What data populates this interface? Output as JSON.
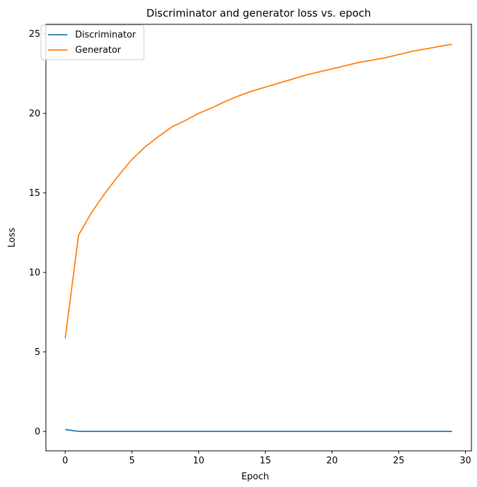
{
  "chart_data": {
    "type": "line",
    "title": "Discriminator and generator loss vs. epoch",
    "xlabel": "Epoch",
    "ylabel": "Loss",
    "xlim": [
      -1.45,
      30.45
    ],
    "ylim": [
      -1.22,
      25.6
    ],
    "xticks": [
      0,
      5,
      10,
      15,
      20,
      25,
      30
    ],
    "yticks": [
      0,
      5,
      10,
      15,
      20,
      25
    ],
    "grid": false,
    "legend_position": "top-left",
    "x": [
      0,
      1,
      2,
      3,
      4,
      5,
      6,
      7,
      8,
      9,
      10,
      11,
      12,
      13,
      14,
      15,
      16,
      17,
      18,
      19,
      20,
      21,
      22,
      23,
      24,
      25,
      26,
      27,
      28,
      29
    ],
    "series": [
      {
        "name": "Discriminator",
        "color": "#1f77b4",
        "values": [
          0.12,
          0.01,
          0.01,
          0.01,
          0.01,
          0.01,
          0.01,
          0.01,
          0.01,
          0.01,
          0.01,
          0.01,
          0.01,
          0.01,
          0.01,
          0.01,
          0.01,
          0.01,
          0.01,
          0.01,
          0.01,
          0.01,
          0.01,
          0.01,
          0.01,
          0.01,
          0.01,
          0.01,
          0.01,
          0.01
        ]
      },
      {
        "name": "Generator",
        "color": "#ff7f0e",
        "values": [
          5.85,
          12.35,
          13.8,
          15.0,
          16.1,
          17.1,
          17.9,
          18.55,
          19.15,
          19.55,
          20.0,
          20.35,
          20.75,
          21.1,
          21.4,
          21.65,
          21.9,
          22.15,
          22.4,
          22.6,
          22.8,
          23.0,
          23.2,
          23.35,
          23.5,
          23.7,
          23.9,
          24.05,
          24.2,
          24.35
        ]
      }
    ]
  }
}
